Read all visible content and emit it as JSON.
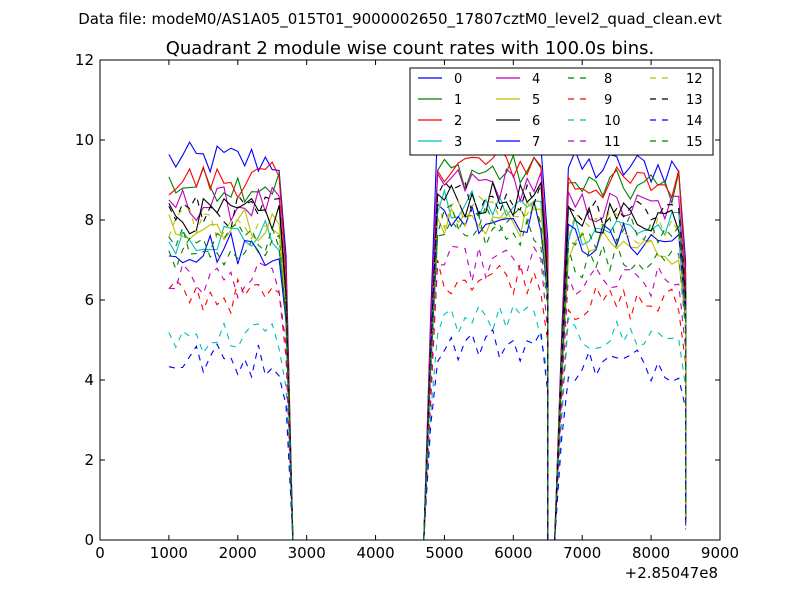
{
  "chart_data": {
    "type": "line",
    "suptitle": "Data file: modeM0/AS1A05_015T01_9000002650_17807cztM0_level2_quad_clean.evt",
    "title": "Quadrant 2 module wise count rates with 100.0s bins.",
    "xlabel": "",
    "ylabel": "",
    "x_offset_label": "+2.85047e8",
    "xlim": [
      0,
      9000
    ],
    "ylim": [
      0,
      12
    ],
    "xticks": [
      0,
      1000,
      2000,
      3000,
      4000,
      5000,
      6000,
      7000,
      8000,
      9000
    ],
    "yticks": [
      0,
      2,
      4,
      6,
      8,
      10,
      12
    ],
    "legend_position": "top-right",
    "legend_columns": 4,
    "segments": [
      {
        "start": 1000,
        "end": 2600,
        "drop_to": 2800
      },
      {
        "start": 4800,
        "end": 6400,
        "drop_to": 6500
      },
      {
        "start": 6700,
        "end": 8400,
        "drop_to": 8500
      }
    ],
    "series": [
      {
        "name": "0",
        "color": "#0000ff",
        "dash": "solid",
        "levels": [
          9.5,
          10.0,
          9.3
        ]
      },
      {
        "name": "1",
        "color": "#008000",
        "dash": "solid",
        "levels": [
          8.9,
          9.2,
          8.8
        ]
      },
      {
        "name": "2",
        "color": "#ff0000",
        "dash": "solid",
        "levels": [
          9.0,
          9.4,
          8.9
        ]
      },
      {
        "name": "3",
        "color": "#00bfbf",
        "dash": "solid",
        "levels": [
          7.6,
          8.3,
          7.8
        ]
      },
      {
        "name": "4",
        "color": "#bf00bf",
        "dash": "solid",
        "levels": [
          8.4,
          8.9,
          8.3
        ]
      },
      {
        "name": "5",
        "color": "#bfbf00",
        "dash": "solid",
        "levels": [
          7.9,
          8.0,
          7.3
        ]
      },
      {
        "name": "6",
        "color": "#000000",
        "dash": "solid",
        "levels": [
          8.1,
          8.5,
          8.1
        ]
      },
      {
        "name": "7",
        "color": "#0000ff",
        "dash": "solid",
        "levels": [
          7.3,
          8.1,
          7.5
        ]
      },
      {
        "name": "8",
        "color": "#008000",
        "dash": "dashed",
        "levels": [
          7.2,
          7.7,
          7.0
        ]
      },
      {
        "name": "9",
        "color": "#ff0000",
        "dash": "dashed",
        "levels": [
          6.1,
          6.6,
          5.9
        ]
      },
      {
        "name": "10",
        "color": "#00bfbf",
        "dash": "dashed",
        "levels": [
          5.1,
          5.5,
          5.1
        ]
      },
      {
        "name": "11",
        "color": "#bf00bf",
        "dash": "dashed",
        "levels": [
          6.5,
          6.9,
          6.4
        ]
      },
      {
        "name": "12",
        "color": "#bfbf00",
        "dash": "dashed",
        "levels": [
          7.9,
          8.2,
          7.8
        ]
      },
      {
        "name": "13",
        "color": "#000000",
        "dash": "dashed",
        "levels": [
          8.2,
          8.6,
          8.3
        ]
      },
      {
        "name": "14",
        "color": "#0000ff",
        "dash": "dashed",
        "levels": [
          4.5,
          4.9,
          4.4
        ]
      },
      {
        "name": "15",
        "color": "#008000",
        "dash": "dashed",
        "levels": [
          7.6,
          8.0,
          7.7
        ]
      }
    ]
  }
}
